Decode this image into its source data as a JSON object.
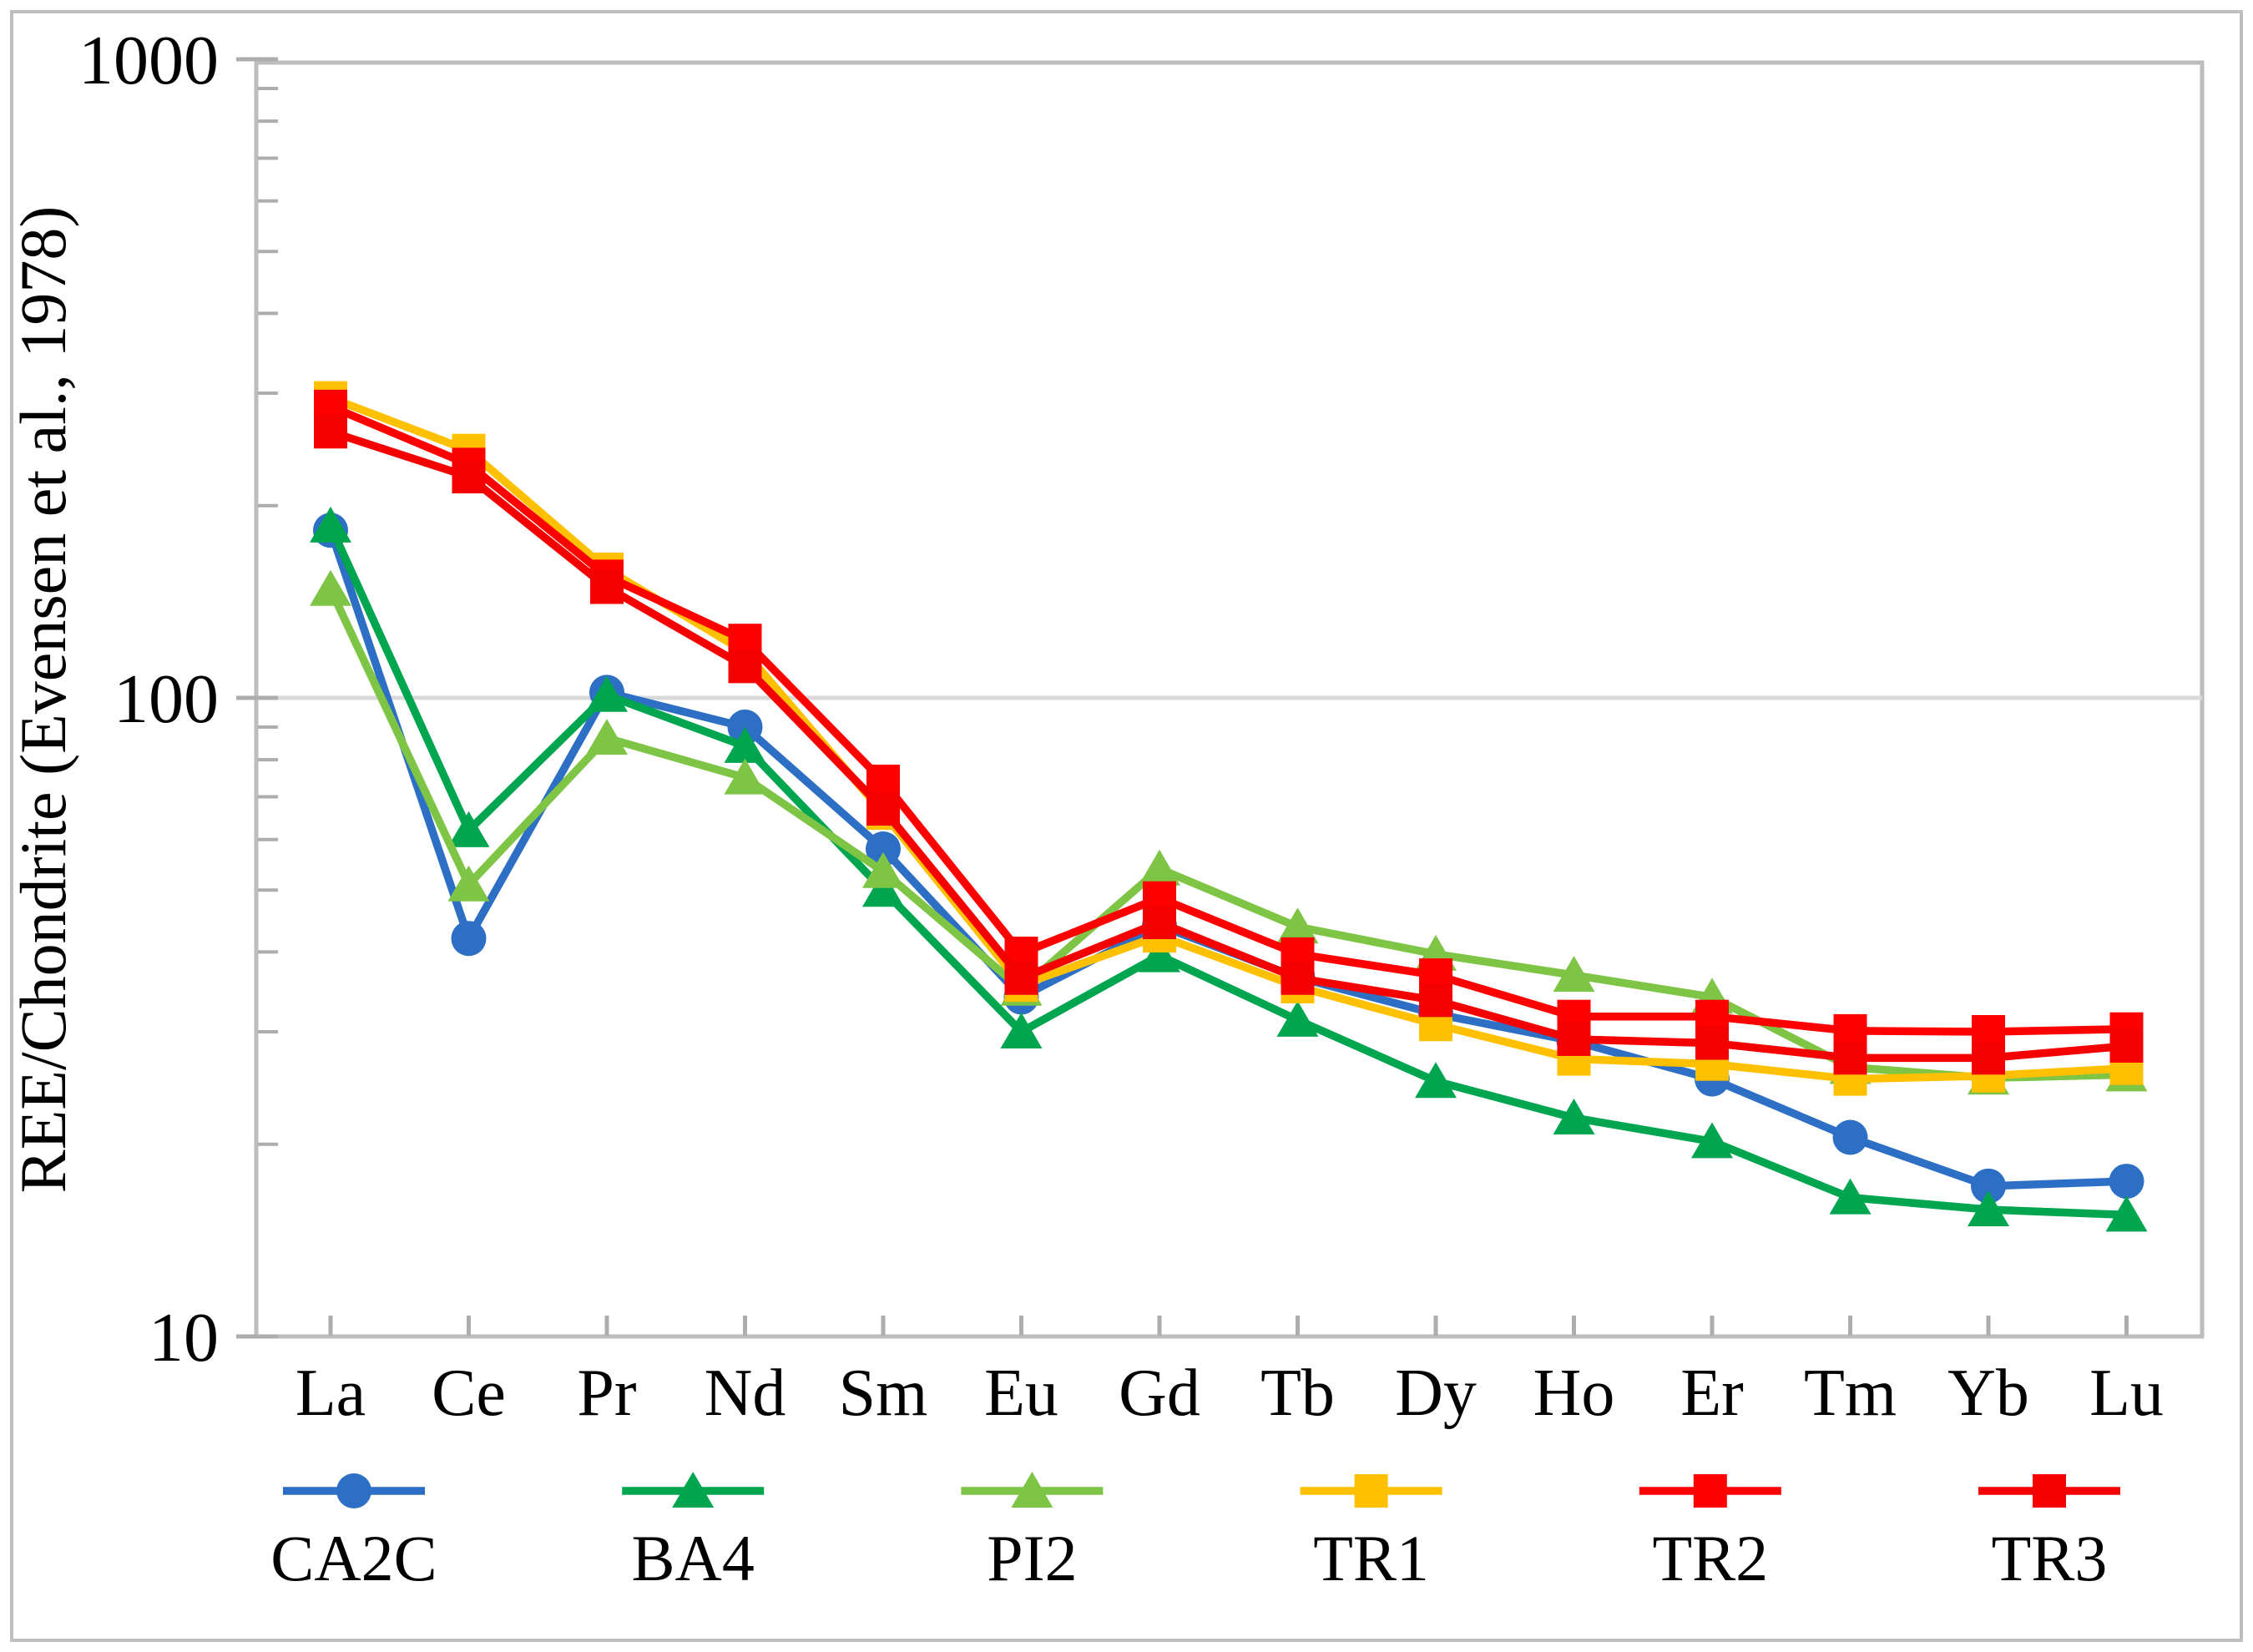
{
  "figure": {
    "background": "#FFFFFF",
    "outer_border_color": "#BFBFBF",
    "plot_border_color": "#BDBDBD",
    "gridline_color": "#D9D9D9",
    "tick_color": "#ADADAD",
    "text_color": "#000000"
  },
  "axes": {
    "y_title": "REE/Chondrite (Evensen et al., 1978)",
    "y_scale": "log",
    "y_tick_labels": [
      "1000",
      "100",
      "10"
    ],
    "y_tick_values": [
      1000,
      100,
      10
    ],
    "x_tick_labels": [
      "La",
      "Ce",
      "Pr",
      "Nd",
      "Sm",
      "Eu",
      "Gd",
      "Tb",
      "Dy",
      "Ho",
      "Er",
      "Tm",
      "Yb",
      "Lu"
    ]
  },
  "chart_data": {
    "type": "line",
    "title": "",
    "xlabel": "",
    "ylabel": "REE/Chondrite (Evensen et al., 1978)",
    "y_scale": "log",
    "ylim": [
      10,
      1000
    ],
    "grid": "horizontal-major-only",
    "legend_position": "bottom",
    "categories": [
      "La",
      "Ce",
      "Pr",
      "Nd",
      "Sm",
      "Eu",
      "Gd",
      "Tb",
      "Dy",
      "Ho",
      "Er",
      "Tm",
      "Yb",
      "Lu"
    ],
    "series": [
      {
        "name": "CA2C",
        "marker": "circle",
        "color": "#2C6FC4",
        "values": [
          183,
          42,
          102,
          90,
          58,
          34,
          44,
          36.5,
          32,
          29,
          25.3,
          20.5,
          17.2,
          17.5
        ]
      },
      {
        "name": "BA4",
        "marker": "triangle",
        "color": "#00A550",
        "values": [
          186,
          62,
          101,
          84,
          50,
          30,
          39.5,
          31.3,
          25.1,
          22,
          20.2,
          16.5,
          15.8,
          15.5
        ]
      },
      {
        "name": "PI2",
        "marker": "triangle",
        "color": "#7EC445",
        "values": [
          148,
          51,
          86.5,
          75,
          53.5,
          35,
          54,
          43.8,
          39.7,
          36.8,
          34,
          26.4,
          25.4,
          25.7
        ]
      },
      {
        "name": "TR1",
        "marker": "square",
        "color": "#FFC000",
        "values": [
          295,
          244,
          159,
          118,
          66,
          35.5,
          42.4,
          35.3,
          30.8,
          27.2,
          26.7,
          25.3,
          25.6,
          26.3
        ]
      },
      {
        "name": "TR2",
        "marker": "square",
        "color": "#FF0000",
        "values": [
          286,
          232,
          155,
          123,
          74,
          39.8,
          48.6,
          39.7,
          36.8,
          31.7,
          31.7,
          30.1,
          30,
          30.3
        ]
      },
      {
        "name": "TR3",
        "marker": "square",
        "color": "#F40000",
        "values": [
          261,
          222,
          149,
          112,
          67,
          36.4,
          44.5,
          36.4,
          33.6,
          29.2,
          28.8,
          27.3,
          27.3,
          28.5
        ]
      }
    ]
  }
}
